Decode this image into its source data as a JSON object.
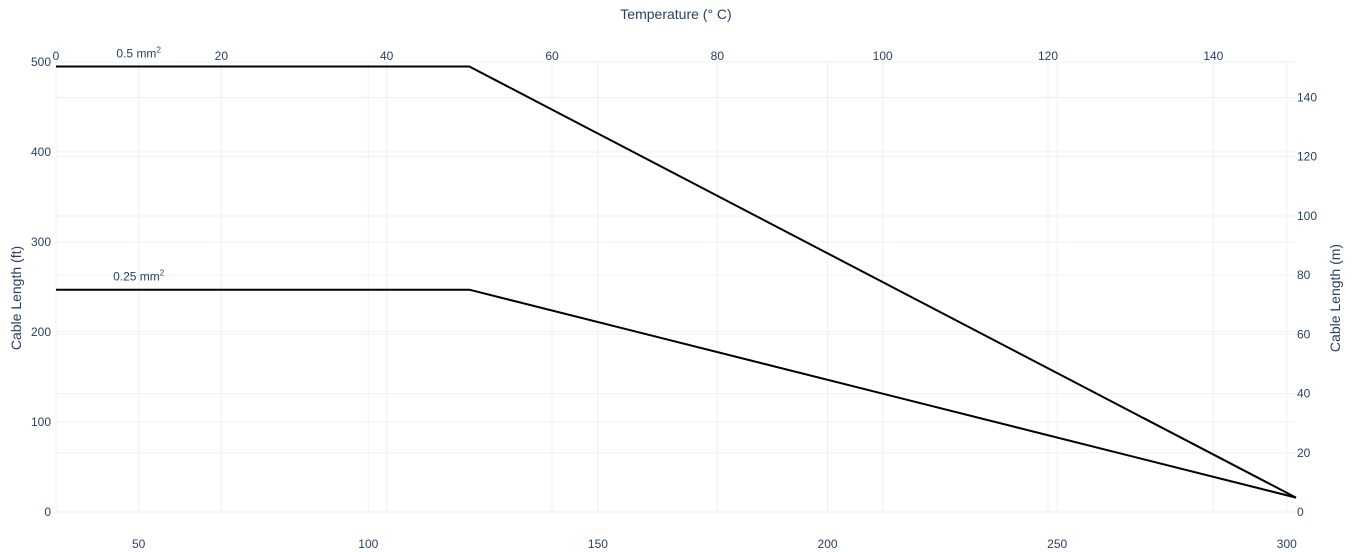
{
  "chart_data": {
    "type": "line",
    "title": "",
    "xaxis_top": {
      "label": "Temperature (° C)",
      "range": [
        0,
        150
      ],
      "ticks": [
        0,
        20,
        40,
        60,
        80,
        100,
        120,
        140
      ]
    },
    "xaxis_bottom": {
      "label": "",
      "range": [
        32,
        302
      ],
      "ticks": [
        50,
        100,
        150,
        200,
        250,
        300
      ]
    },
    "yaxis_left": {
      "label": "Cable Length (ft)",
      "range": [
        0,
        500
      ],
      "ticks": [
        0,
        100,
        200,
        300,
        400,
        500
      ]
    },
    "yaxis_right": {
      "label": "Cable Length (m)",
      "range": [
        0,
        152
      ],
      "ticks": [
        0,
        20,
        40,
        60,
        80,
        100,
        120,
        140
      ]
    },
    "grid": true,
    "series": [
      {
        "name": "0.5 mm",
        "superscript": "2",
        "x": [
          0,
          50,
          150
        ],
        "y": [
          495,
          495,
          16
        ],
        "annotation_x": 10
      },
      {
        "name": "0.25 mm",
        "superscript": "2",
        "x": [
          0,
          50,
          150
        ],
        "y": [
          247,
          247,
          16
        ],
        "annotation_x": 10
      }
    ]
  }
}
